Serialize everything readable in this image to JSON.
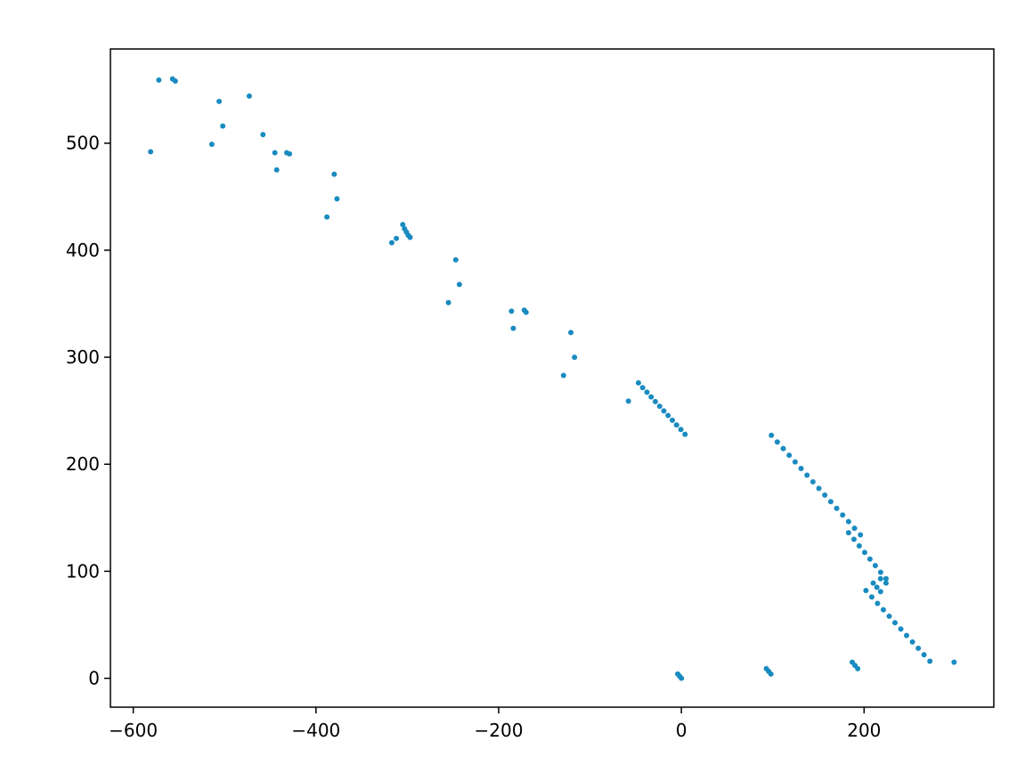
{
  "chart_data": {
    "type": "scatter",
    "title": "",
    "xlabel": "",
    "ylabel": "",
    "xlim": [
      -625,
      342
    ],
    "ylim": [
      -27,
      588
    ],
    "xticks": [
      -600,
      -400,
      -200,
      0,
      200
    ],
    "yticks": [
      0,
      100,
      200,
      300,
      400,
      500
    ],
    "xtick_labels": [
      "−600",
      "−400",
      "−200",
      "0",
      "200"
    ],
    "ytick_labels": [
      "0",
      "100",
      "200",
      "300",
      "400",
      "500"
    ],
    "grid": false,
    "color": "#1a8bc0",
    "points": [
      [
        -581,
        492
      ],
      [
        -572,
        559
      ],
      [
        -557,
        560
      ],
      [
        -554,
        558
      ],
      [
        -514,
        499
      ],
      [
        -506,
        539
      ],
      [
        -502,
        516
      ],
      [
        -473,
        544
      ],
      [
        -458,
        508
      ],
      [
        -445,
        491
      ],
      [
        -443,
        475
      ],
      [
        -432,
        491
      ],
      [
        -429,
        490
      ],
      [
        -388,
        431
      ],
      [
        -380,
        471
      ],
      [
        -377,
        448
      ],
      [
        -317,
        407
      ],
      [
        -312,
        411
      ],
      [
        -305,
        424
      ],
      [
        -303,
        420
      ],
      [
        -301,
        417
      ],
      [
        -299,
        414
      ],
      [
        -297,
        412
      ],
      [
        -247,
        391
      ],
      [
        -243,
        368
      ],
      [
        -255,
        351
      ],
      [
        -186,
        343
      ],
      [
        -184,
        327
      ],
      [
        -172,
        344
      ],
      [
        -170,
        342
      ],
      [
        -121,
        323
      ],
      [
        -117,
        300
      ],
      [
        -129,
        283
      ],
      [
        -58,
        259
      ],
      [
        -47,
        276
      ],
      [
        -42.4,
        271.6
      ],
      [
        -37.7,
        267.3
      ],
      [
        -33.1,
        262.9
      ],
      [
        -28.5,
        258.5
      ],
      [
        -23.8,
        254.2
      ],
      [
        -19.2,
        249.8
      ],
      [
        -14.6,
        245.5
      ],
      [
        -9.9,
        241.1
      ],
      [
        -5.3,
        236.7
      ],
      [
        -0.6,
        232.4
      ],
      [
        4,
        228
      ],
      [
        98.5,
        227
      ],
      [
        105,
        220.8
      ],
      [
        111.5,
        214.6
      ],
      [
        118,
        208.4
      ],
      [
        124.5,
        202.2
      ],
      [
        131,
        196
      ],
      [
        137.5,
        189.8
      ],
      [
        144,
        183.6
      ],
      [
        150.5,
        177.4
      ],
      [
        157,
        171.2
      ],
      [
        163.5,
        165
      ],
      [
        170,
        158.8
      ],
      [
        176.5,
        152.6
      ],
      [
        183,
        146.4
      ],
      [
        189.5,
        140.2
      ],
      [
        196,
        134
      ],
      [
        183,
        136
      ],
      [
        188.9,
        129.9
      ],
      [
        194.7,
        123.7
      ],
      [
        200.6,
        117.6
      ],
      [
        206.4,
        111.4
      ],
      [
        212.3,
        105.3
      ],
      [
        218.1,
        99.1
      ],
      [
        224,
        93
      ],
      [
        224,
        89
      ],
      [
        218,
        93
      ],
      [
        210,
        89
      ],
      [
        214,
        85
      ],
      [
        218,
        81
      ],
      [
        202,
        82
      ],
      [
        208.4,
        76
      ],
      [
        214.7,
        70
      ],
      [
        221.1,
        64
      ],
      [
        227.5,
        58
      ],
      [
        233.8,
        52
      ],
      [
        240.2,
        46
      ],
      [
        246.5,
        40
      ],
      [
        252.9,
        34
      ],
      [
        259.3,
        28
      ],
      [
        265.6,
        22
      ],
      [
        272,
        16
      ],
      [
        93,
        9
      ],
      [
        95.5,
        6.5
      ],
      [
        98,
        4
      ],
      [
        187,
        15
      ],
      [
        190,
        12
      ],
      [
        193,
        9
      ],
      [
        298.5,
        15
      ],
      [
        -4,
        4
      ],
      [
        -2,
        2
      ],
      [
        0,
        0
      ]
    ]
  }
}
